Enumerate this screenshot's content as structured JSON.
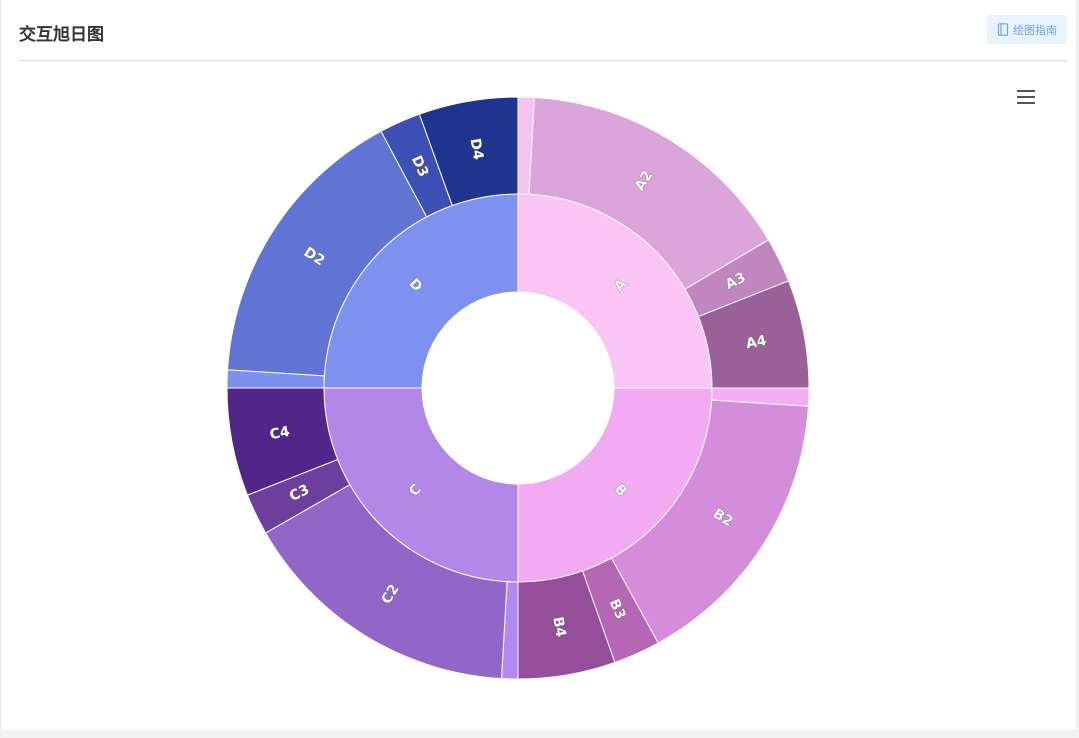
{
  "header": {
    "title": "交互旭日图",
    "guide_button_label": "绘图指南"
  },
  "icons": {
    "guide": "book-icon",
    "menu": "hamburger-menu-icon"
  },
  "chart_data": {
    "type": "sunburst",
    "inner": [
      {
        "name": "A",
        "value": 25,
        "color": "#fac4f5"
      },
      {
        "name": "B",
        "value": 25,
        "color": "#f2abf2"
      },
      {
        "name": "C",
        "value": 25,
        "color": "#b287e8"
      },
      {
        "name": "D",
        "value": 25,
        "color": "#8090ee"
      }
    ],
    "outer": [
      {
        "parent": "A",
        "name": "",
        "value": 0.9,
        "color": "#f7c1f1",
        "label": false
      },
      {
        "parent": "A",
        "name": "A2",
        "value": 15.6,
        "color": "#dca5d9",
        "label": true
      },
      {
        "parent": "A",
        "name": "A3",
        "value": 2.5,
        "color": "#c286bf",
        "label": true
      },
      {
        "parent": "A",
        "name": "A4",
        "value": 6.0,
        "color": "#9a6098",
        "label": true
      },
      {
        "parent": "B",
        "name": "",
        "value": 1.0,
        "color": "#f4aef4",
        "label": false
      },
      {
        "parent": "B",
        "name": "B2",
        "value": 16.0,
        "color": "#d48dda",
        "label": true
      },
      {
        "parent": "B",
        "name": "B3",
        "value": 2.6,
        "color": "#b567b3",
        "label": true
      },
      {
        "parent": "B",
        "name": "B4",
        "value": 5.4,
        "color": "#944e9a",
        "label": true
      },
      {
        "parent": "C",
        "name": "",
        "value": 0.9,
        "color": "#b289f0",
        "label": false
      },
      {
        "parent": "C",
        "name": "C2",
        "value": 15.8,
        "color": "#9266c9",
        "label": true
      },
      {
        "parent": "C",
        "name": "C3",
        "value": 2.3,
        "color": "#6c3f9e",
        "label": true
      },
      {
        "parent": "C",
        "name": "C4",
        "value": 6.0,
        "color": "#522588",
        "label": true
      },
      {
        "parent": "D",
        "name": "",
        "value": 1.0,
        "color": "#7e90ee",
        "label": false
      },
      {
        "parent": "D",
        "name": "D2",
        "value": 16.2,
        "color": "#6174d3",
        "label": true
      },
      {
        "parent": "D",
        "name": "D3",
        "value": 2.3,
        "color": "#3e50b5",
        "label": true
      },
      {
        "parent": "D",
        "name": "D4",
        "value": 5.5,
        "color": "#20338f",
        "label": true
      }
    ]
  }
}
